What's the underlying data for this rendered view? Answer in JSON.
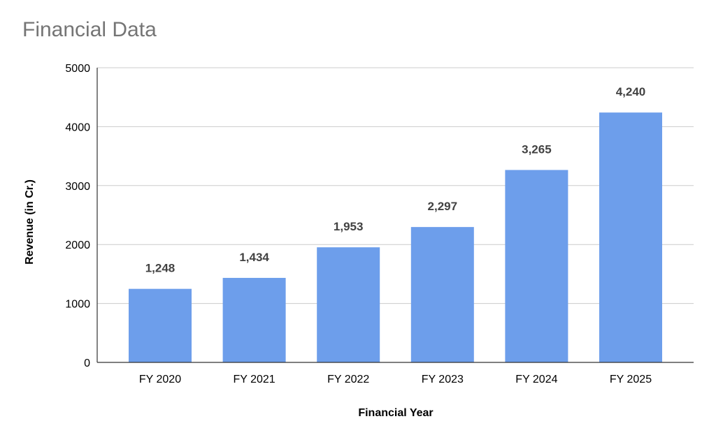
{
  "chart_data": {
    "type": "bar",
    "title": "Financial Data",
    "xlabel": "Financial Year",
    "ylabel": "Revenue (in Cr.)",
    "categories": [
      "FY 2020",
      "FY 2021",
      "FY 2022",
      "FY 2023",
      "FY 2024",
      "FY 2025"
    ],
    "values": [
      1248,
      1434,
      1953,
      2297,
      3265,
      4240
    ],
    "data_labels": [
      "1,248",
      "1,434",
      "1,953",
      "2,297",
      "3,265",
      "4,240"
    ],
    "ylim": [
      0,
      5000
    ],
    "yticks": [
      0,
      1000,
      2000,
      3000,
      4000,
      5000
    ],
    "ytick_labels": [
      "0",
      "1000",
      "2000",
      "3000",
      "4000",
      "5000"
    ],
    "grid": true,
    "legend": "none",
    "bar_color": "#6d9eeb"
  }
}
